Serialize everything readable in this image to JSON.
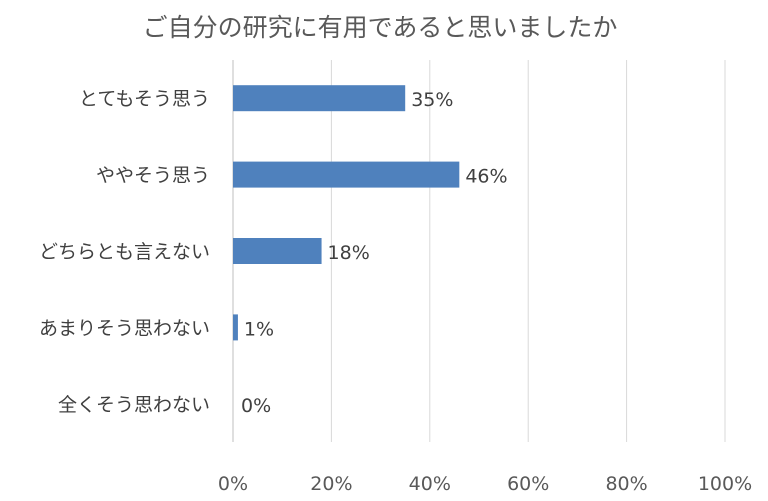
{
  "chart_data": {
    "type": "bar",
    "orientation": "horizontal",
    "title": "ご自分の研究に有用であると思いましたか",
    "categories": [
      "とてもそう思う",
      "ややそう思う",
      "どちらとも言えない",
      "あまりそう思わない",
      "全くそう思わない"
    ],
    "values": [
      35,
      46,
      18,
      1,
      0
    ],
    "data_labels": [
      "35%",
      "46%",
      "18%",
      "1%",
      "0%"
    ],
    "x_ticks": [
      "0%",
      "20%",
      "40%",
      "60%",
      "80%",
      "100%"
    ],
    "xlim": [
      0,
      100
    ],
    "grid": true,
    "bar_color": "#4f81bd"
  }
}
